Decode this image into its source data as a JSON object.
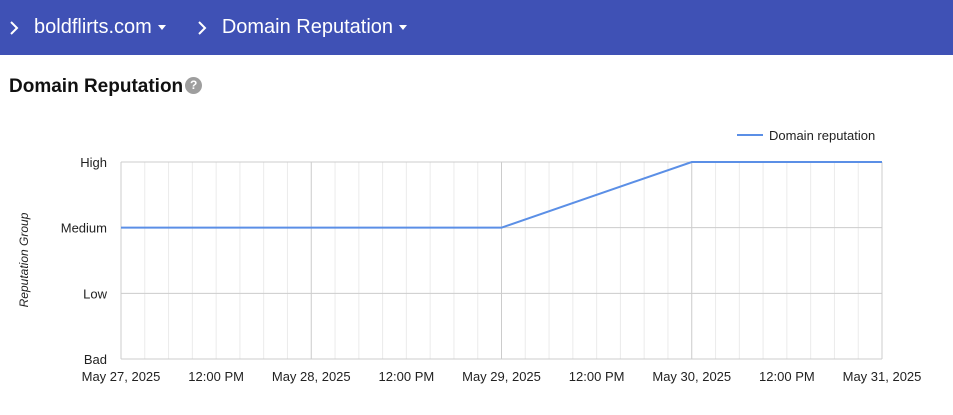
{
  "breadcrumb": {
    "domain": "boldflirts.com",
    "section": "Domain Reputation"
  },
  "page": {
    "title": "Domain Reputation"
  },
  "chart_data": {
    "type": "line",
    "title": "",
    "ylabel": "Reputation Group",
    "xlabel": "",
    "y_categories": [
      "Bad",
      "Low",
      "Medium",
      "High"
    ],
    "x_ticks": [
      "May 27, 2025",
      "12:00 PM",
      "May 28, 2025",
      "12:00 PM",
      "May 29, 2025",
      "12:00 PM",
      "May 30, 2025",
      "12:00 PM",
      "May 31, 2025"
    ],
    "xlim": [
      "2025-05-27",
      "2025-05-31"
    ],
    "legend_position": "top-right",
    "grid": true,
    "series": [
      {
        "name": "Domain reputation",
        "color": "#5b8fe6",
        "points": [
          {
            "x": "2025-05-27",
            "y": "Medium"
          },
          {
            "x": "2025-05-28",
            "y": "Medium"
          },
          {
            "x": "2025-05-29",
            "y": "Medium"
          },
          {
            "x": "2025-05-30",
            "y": "High"
          },
          {
            "x": "2025-05-31",
            "y": "High"
          }
        ]
      }
    ]
  }
}
